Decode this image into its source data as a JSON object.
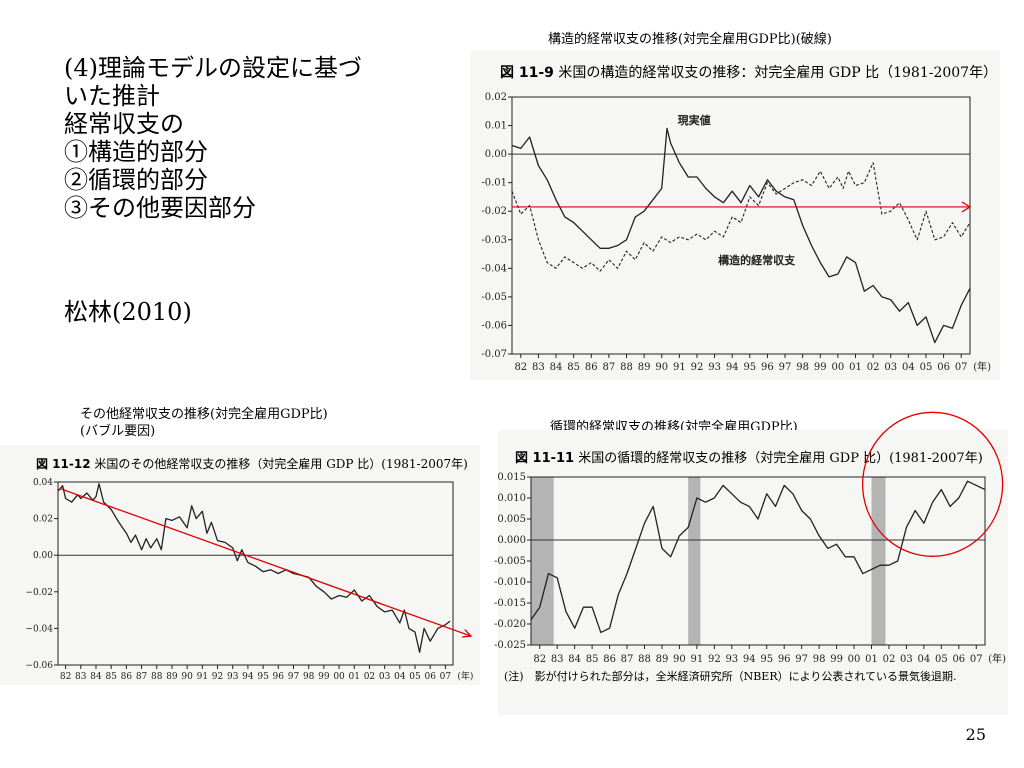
{
  "slide": {
    "heading_lines": [
      "(4)理論モデルの設定に基づ",
      "いた推計",
      "経常収支の",
      "①構造的部分",
      "②循環的部分",
      "③その他要因部分"
    ],
    "author": "松林(2010)",
    "page_number": "25"
  },
  "captions": {
    "structural": "構造的経常収支の推移(対完全雇用GDP比)(破線)",
    "other_line1": "その他経常収支の推移(対完全雇用GDP比)",
    "other_line2": "(バブル要因)",
    "cyclical": "循環的経常収支の推移(対完全雇用GDP比)"
  },
  "chart_data": [
    {
      "type": "line",
      "figure_no": "図 11-9",
      "title": "米国の構造的経常収支の推移：対完全雇用 GDP 比（1981-2007年）",
      "xlabel": "(年)",
      "categories": [
        "82",
        "83",
        "84",
        "85",
        "86",
        "87",
        "88",
        "89",
        "90",
        "91",
        "92",
        "93",
        "94",
        "95",
        "96",
        "97",
        "98",
        "99",
        "00",
        "01",
        "02",
        "03",
        "04",
        "05",
        "06",
        "07"
      ],
      "x_range": [
        1981.5,
        2007.5
      ],
      "ylim": [
        -0.07,
        0.02
      ],
      "yticks": [
        "0.02",
        "0.01",
        "0.00",
        "-0.01",
        "-0.02",
        "-0.03",
        "-0.04",
        "-0.05",
        "-0.06",
        "-0.07"
      ],
      "annotations": [
        "現実値",
        "構造的経常収支"
      ],
      "reference_line": {
        "y": -0.0185,
        "color": "#e00000"
      },
      "series": [
        {
          "style": "solid",
          "x": [
            1981.5,
            1982,
            1982.5,
            1983,
            1983.5,
            1984,
            1984.5,
            1985,
            1985.5,
            1986,
            1986.5,
            1987,
            1987.5,
            1988,
            1988.5,
            1989,
            1989.5,
            1990,
            1990.3,
            1990.5,
            1991,
            1991.5,
            1992,
            1992.5,
            1993,
            1993.5,
            1994,
            1994.5,
            1995,
            1995.5,
            1996,
            1996.5,
            1997,
            1997.5,
            1998,
            1998.5,
            1999,
            1999.5,
            2000,
            2000.5,
            2001,
            2001.5,
            2002,
            2002.5,
            2003,
            2003.5,
            2004,
            2004.5,
            2005,
            2005.5,
            2006,
            2006.5,
            2007,
            2007.5
          ],
          "y": [
            0.003,
            0.002,
            0.006,
            -0.004,
            -0.009,
            -0.016,
            -0.022,
            -0.024,
            -0.027,
            -0.03,
            -0.033,
            -0.033,
            -0.032,
            -0.03,
            -0.022,
            -0.02,
            -0.016,
            -0.012,
            0.009,
            0.004,
            -0.003,
            -0.008,
            -0.008,
            -0.012,
            -0.015,
            -0.017,
            -0.013,
            -0.017,
            -0.011,
            -0.015,
            -0.009,
            -0.013,
            -0.015,
            -0.016,
            -0.025,
            -0.032,
            -0.038,
            -0.043,
            -0.042,
            -0.036,
            -0.038,
            -0.048,
            -0.046,
            -0.05,
            -0.051,
            -0.055,
            -0.052,
            -0.06,
            -0.057,
            -0.066,
            -0.06,
            -0.061,
            -0.053,
            -0.047
          ]
        },
        {
          "style": "dashed",
          "x": [
            1981.5,
            1982,
            1982.5,
            1983,
            1983.5,
            1984,
            1984.5,
            1985,
            1985.5,
            1986,
            1986.5,
            1987,
            1987.5,
            1988,
            1988.5,
            1989,
            1989.5,
            1990,
            1990.5,
            1991,
            1991.5,
            1992,
            1992.5,
            1993,
            1993.5,
            1994,
            1994.5,
            1995,
            1995.5,
            1996,
            1996.5,
            1997,
            1997.5,
            1998,
            1998.5,
            1999,
            1999.5,
            2000,
            2000.3,
            2000.6,
            2001,
            2001.5,
            2002,
            2002.5,
            2003,
            2003.5,
            2004,
            2004.5,
            2005,
            2005.5,
            2006,
            2006.5,
            2007,
            2007.5
          ],
          "y": [
            -0.013,
            -0.021,
            -0.018,
            -0.03,
            -0.038,
            -0.04,
            -0.036,
            -0.038,
            -0.04,
            -0.038,
            -0.041,
            -0.037,
            -0.04,
            -0.034,
            -0.037,
            -0.031,
            -0.034,
            -0.029,
            -0.031,
            -0.029,
            -0.03,
            -0.028,
            -0.03,
            -0.027,
            -0.029,
            -0.022,
            -0.024,
            -0.015,
            -0.018,
            -0.01,
            -0.014,
            -0.012,
            -0.01,
            -0.009,
            -0.011,
            -0.006,
            -0.012,
            -0.008,
            -0.012,
            -0.006,
            -0.011,
            -0.01,
            -0.003,
            -0.021,
            -0.02,
            -0.017,
            -0.023,
            -0.03,
            -0.02,
            -0.03,
            -0.029,
            -0.024,
            -0.029,
            -0.024
          ]
        }
      ]
    },
    {
      "type": "line",
      "figure_no": "図 11-12",
      "title": "米国のその他経常収支の推移（対完全雇用 GDP 比）(1981-2007年)",
      "xlabel": "(年)",
      "categories": [
        "82",
        "83",
        "84",
        "85",
        "86",
        "87",
        "88",
        "89",
        "90",
        "91",
        "92",
        "93",
        "94",
        "95",
        "96",
        "97",
        "98",
        "99",
        "00",
        "01",
        "02",
        "03",
        "04",
        "05",
        "06",
        "07"
      ],
      "x_range": [
        1981.5,
        2007.5
      ],
      "ylim": [
        -0.06,
        0.04
      ],
      "yticks": [
        "0.04",
        "0.02",
        "0.00",
        "−0.02",
        "−0.04",
        "−0.06"
      ],
      "trend_line": {
        "from": [
          1981.6,
          0.0365
        ],
        "to": [
          2007.5,
          -0.042
        ],
        "color": "#e00000"
      },
      "series": [
        {
          "style": "solid",
          "x": [
            1981.5,
            1981.8,
            1982,
            1982.4,
            1982.8,
            1983,
            1983.4,
            1983.8,
            1984,
            1984.2,
            1984.5,
            1985,
            1985.5,
            1986,
            1986.3,
            1986.6,
            1987,
            1987.3,
            1987.6,
            1988,
            1988.3,
            1988.6,
            1989,
            1989.5,
            1990,
            1990.3,
            1990.6,
            1991,
            1991.3,
            1991.6,
            1992,
            1992.5,
            1993,
            1993.3,
            1993.6,
            1994,
            1994.5,
            1995,
            1995.5,
            1996,
            1996.5,
            1997,
            1997.5,
            1998,
            1998.5,
            1999,
            1999.5,
            2000,
            2000.5,
            2001,
            2001.5,
            2002,
            2002.5,
            2003,
            2003.5,
            2004,
            2004.3,
            2004.6,
            2005,
            2005.3,
            2005.6,
            2006,
            2006.5,
            2007,
            2007.3
          ],
          "y": [
            0.035,
            0.038,
            0.031,
            0.029,
            0.033,
            0.031,
            0.034,
            0.03,
            0.032,
            0.039,
            0.029,
            0.025,
            0.018,
            0.012,
            0.007,
            0.011,
            0.003,
            0.009,
            0.004,
            0.009,
            0.003,
            0.02,
            0.019,
            0.021,
            0.015,
            0.027,
            0.02,
            0.024,
            0.012,
            0.018,
            0.008,
            0.007,
            0.004,
            -0.003,
            0.003,
            -0.004,
            -0.006,
            -0.009,
            -0.008,
            -0.01,
            -0.008,
            -0.01,
            -0.011,
            -0.012,
            -0.017,
            -0.02,
            -0.024,
            -0.022,
            -0.023,
            -0.019,
            -0.025,
            -0.022,
            -0.028,
            -0.031,
            -0.03,
            -0.037,
            -0.03,
            -0.04,
            -0.042,
            -0.053,
            -0.04,
            -0.047,
            -0.04,
            -0.038,
            -0.036
          ]
        }
      ]
    },
    {
      "type": "line",
      "figure_no": "図 11-11",
      "title": "米国の循環的経常収支の推移（対完全雇用 GDP 比）(1981-2007年)",
      "xlabel": "(年)",
      "categories": [
        "82",
        "83",
        "84",
        "85",
        "86",
        "87",
        "88",
        "89",
        "90",
        "91",
        "92",
        "93",
        "94",
        "95",
        "96",
        "97",
        "98",
        "99",
        "00",
        "01",
        "02",
        "03",
        "04",
        "05",
        "06",
        "07"
      ],
      "x_range": [
        1981.5,
        2007.5
      ],
      "ylim": [
        -0.025,
        0.015
      ],
      "yticks": [
        "0.015",
        "0.010",
        "0.005",
        "0.000",
        "-0.005",
        "-0.010",
        "-0.015",
        "-0.020",
        "-0.025"
      ],
      "shaded_periods": [
        [
          1981.5,
          1982.8
        ],
        [
          1990.5,
          1991.2
        ],
        [
          2001.0,
          2001.8
        ]
      ],
      "note": "(注)　影が付けられた部分は，全米経済研究所（NBER）により公表されている景気後退期.",
      "highlight_circle": {
        "center_x": 2004.5,
        "center_y": 0.0085,
        "color": "#e00000"
      },
      "series": [
        {
          "style": "solid",
          "x": [
            1981.5,
            1982,
            1982.5,
            1983,
            1983.5,
            1984,
            1984.5,
            1985,
            1985.5,
            1986,
            1986.5,
            1987,
            1987.5,
            1988,
            1988.5,
            1989,
            1989.5,
            1990,
            1990.5,
            1991,
            1991.5,
            1992,
            1992.5,
            1993,
            1993.5,
            1994,
            1994.5,
            1995,
            1995.5,
            1996,
            1996.5,
            1997,
            1997.5,
            1998,
            1998.5,
            1999,
            1999.5,
            2000,
            2000.5,
            2001,
            2001.5,
            2002,
            2002.5,
            2003,
            2003.5,
            2004,
            2004.5,
            2005,
            2005.5,
            2006,
            2006.5,
            2007,
            2007.5
          ],
          "y": [
            -0.019,
            -0.016,
            -0.008,
            -0.009,
            -0.017,
            -0.021,
            -0.016,
            -0.016,
            -0.022,
            -0.021,
            -0.013,
            -0.008,
            -0.002,
            0.004,
            0.008,
            -0.002,
            -0.004,
            0.001,
            0.003,
            0.01,
            0.009,
            0.01,
            0.013,
            0.011,
            0.009,
            0.008,
            0.005,
            0.011,
            0.008,
            0.013,
            0.011,
            0.007,
            0.005,
            0.001,
            -0.002,
            -0.001,
            -0.004,
            -0.004,
            -0.008,
            -0.007,
            -0.006,
            -0.006,
            -0.005,
            0.003,
            0.007,
            0.004,
            0.009,
            0.012,
            0.008,
            0.01,
            0.014,
            0.013,
            0.012
          ]
        }
      ]
    }
  ]
}
